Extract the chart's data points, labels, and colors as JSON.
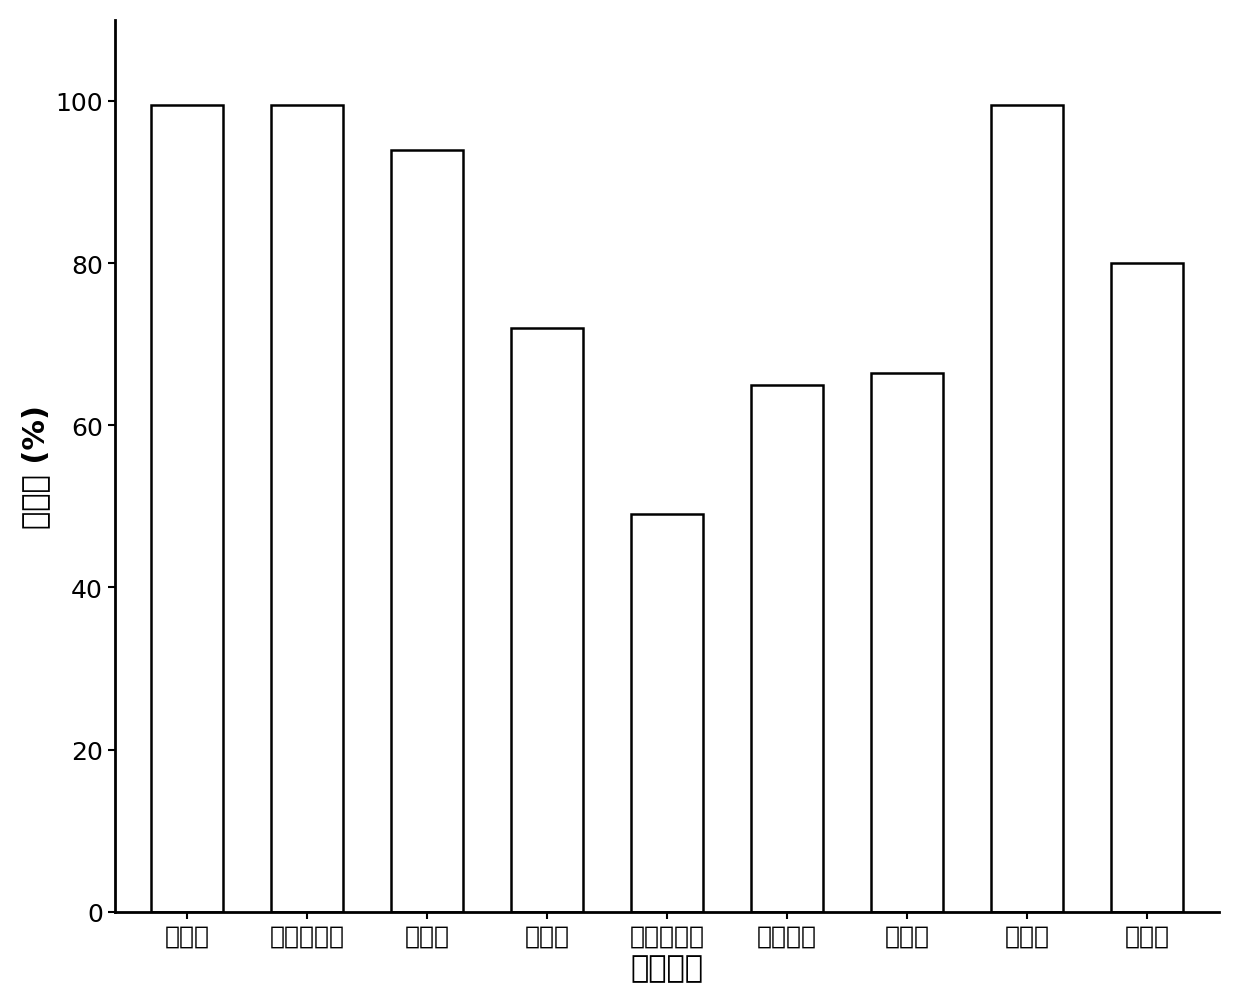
{
  "categories": [
    "嘧菌酯",
    "甲基硫菌灵",
    "多菌灵",
    "乙霉威",
    "苯醚甲环唑",
    "烯酰吗啉",
    "嘧霉灵",
    "多效唑",
    "嘧霉胺"
  ],
  "values": [
    99.5,
    99.5,
    94.0,
    72.0,
    49.0,
    65.0,
    66.5,
    99.5,
    80.0
  ],
  "bar_color": "#ffffff",
  "bar_edgecolor": "#000000",
  "bar_linewidth": 1.8,
  "xlabel": "农药名称",
  "ylabel": "降解率 (%)",
  "ylim": [
    0,
    110
  ],
  "yticks": [
    0,
    20,
    40,
    60,
    80,
    100
  ],
  "xlabel_fontsize": 22,
  "ylabel_fontsize": 22,
  "tick_fontsize": 18,
  "background_color": "#ffffff",
  "bar_width": 0.6
}
